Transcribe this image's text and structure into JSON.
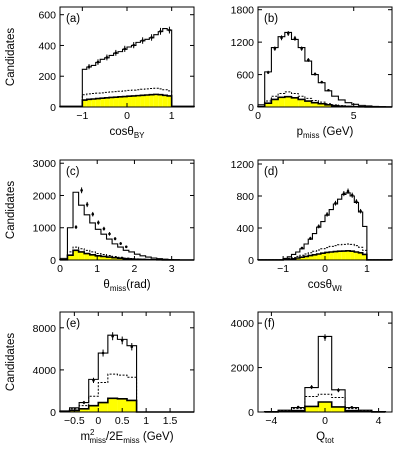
{
  "figure": {
    "y_label": "Candidates",
    "colors": {
      "fill": "#ffff00",
      "line": "#000000",
      "background": "#ffffff"
    }
  },
  "chart_data": [
    {
      "type": "bar",
      "panel": "(a)",
      "xlabel": "cosθ",
      "xlabel_sub": "BY",
      "xlabel_tail": "",
      "ylabel": "Candidates",
      "xlim": [
        -1.5,
        1.5
      ],
      "ylim": [
        0,
        650
      ],
      "xticks": [
        -1,
        0,
        1
      ],
      "yticks": [
        0,
        200,
        400,
        600
      ],
      "bin_edges": [
        -1.5,
        -1.375,
        -1.25,
        -1.125,
        -1.0,
        -0.9,
        -0.8,
        -0.7,
        -0.6,
        -0.5,
        -0.4,
        -0.3,
        -0.2,
        -0.1,
        0.0,
        0.1,
        0.2,
        0.3,
        0.4,
        0.5,
        0.6,
        0.7,
        0.8,
        0.9,
        1.0,
        1.125,
        1.25,
        1.375,
        1.5
      ],
      "series": [
        {
          "style": "solid",
          "values": [
            5,
            5,
            5,
            5,
            245,
            260,
            270,
            290,
            310,
            320,
            335,
            350,
            360,
            375,
            390,
            400,
            420,
            430,
            440,
            450,
            470,
            490,
            510,
            500,
            5,
            5,
            5,
            5
          ]
        },
        {
          "style": "dashed",
          "values": [
            3,
            3,
            3,
            3,
            80,
            85,
            88,
            90,
            92,
            95,
            98,
            100,
            102,
            105,
            108,
            110,
            112,
            115,
            118,
            120,
            122,
            118,
            112,
            105,
            3,
            3,
            3,
            3
          ]
        },
        {
          "style": "filled",
          "values": [
            2,
            2,
            2,
            2,
            45,
            50,
            52,
            55,
            57,
            60,
            62,
            64,
            66,
            68,
            70,
            72,
            74,
            76,
            78,
            80,
            82,
            80,
            76,
            72,
            2,
            2,
            2,
            2
          ]
        }
      ],
      "points": {
        "x": [
          -0.85,
          -0.65,
          -0.45,
          -0.25,
          -0.05,
          0.15,
          0.35,
          0.55,
          0.75,
          0.95
        ],
        "y": [
          262,
          292,
          322,
          352,
          378,
          402,
          432,
          452,
          492,
          500
        ],
        "err": [
          17,
          18,
          19,
          19,
          20,
          20,
          21,
          21,
          22,
          22
        ]
      }
    },
    {
      "type": "bar",
      "panel": "(b)",
      "xlabel": "p",
      "xlabel_sub": "miss",
      "xlabel_tail": " (GeV)",
      "ylabel": "",
      "xlim": [
        0,
        7
      ],
      "ylim": [
        0,
        1850
      ],
      "xticks": [
        0,
        5
      ],
      "yticks": [
        0,
        600,
        1200,
        1800
      ],
      "bin_edges": [
        0,
        0.35,
        0.7,
        1.05,
        1.4,
        1.75,
        2.1,
        2.45,
        2.8,
        3.15,
        3.5,
        3.85,
        4.2,
        4.55,
        4.9,
        5.25,
        5.6,
        5.95,
        6.3,
        6.65,
        7.0
      ],
      "series": [
        {
          "style": "solid",
          "values": [
            40,
            650,
            1100,
            1300,
            1380,
            1250,
            1100,
            850,
            600,
            450,
            300,
            200,
            130,
            80,
            50,
            30,
            20,
            10,
            5,
            3
          ]
        },
        {
          "style": "dashed",
          "values": [
            10,
            110,
            200,
            250,
            280,
            250,
            200,
            160,
            120,
            90,
            60,
            40,
            25,
            15,
            10,
            6,
            4,
            2,
            1,
            1
          ]
        },
        {
          "style": "filled",
          "values": [
            5,
            70,
            140,
            180,
            190,
            170,
            140,
            110,
            80,
            60,
            40,
            25,
            15,
            10,
            6,
            4,
            2,
            1,
            1,
            0
          ]
        }
      ],
      "points": {
        "x": [
          0.53,
          0.88,
          1.23,
          1.58,
          1.93,
          2.28,
          2.63,
          2.98,
          3.33,
          3.68
        ],
        "y": [
          640,
          1080,
          1280,
          1360,
          1270,
          1080,
          870,
          610,
          460,
          310
        ],
        "err": [
          30,
          40,
          45,
          45,
          45,
          40,
          35,
          30,
          25,
          20
        ]
      }
    },
    {
      "type": "bar",
      "panel": "(c)",
      "xlabel": "θ",
      "xlabel_sub": "miss",
      "xlabel_tail": "(rad)",
      "ylabel": "Candidates",
      "xlim": [
        0,
        3.6
      ],
      "ylim": [
        0,
        3100
      ],
      "xticks": [
        0,
        1,
        2,
        3
      ],
      "yticks": [
        0,
        1000,
        2000,
        3000
      ],
      "bin_edges": [
        0,
        0.2,
        0.35,
        0.5,
        0.65,
        0.8,
        0.95,
        1.1,
        1.25,
        1.4,
        1.55,
        1.7,
        1.85,
        2.0,
        2.15,
        2.3,
        2.45,
        2.6,
        2.75,
        2.9,
        3.05,
        3.2,
        3.6
      ],
      "series": [
        {
          "style": "solid",
          "values": [
            50,
            1000,
            2100,
            1700,
            1400,
            1150,
            950,
            800,
            650,
            500,
            400,
            300,
            250,
            180,
            130,
            90,
            60,
            40,
            25,
            15,
            8,
            3
          ]
        },
        {
          "style": "dashed",
          "values": [
            10,
            250,
            400,
            350,
            300,
            250,
            200,
            170,
            140,
            110,
            85,
            60,
            45,
            35,
            25,
            18,
            12,
            8,
            5,
            3,
            2,
            1
          ]
        },
        {
          "style": "filled",
          "values": [
            5,
            150,
            300,
            250,
            200,
            160,
            130,
            110,
            90,
            70,
            55,
            40,
            30,
            22,
            16,
            12,
            8,
            5,
            3,
            2,
            1,
            0
          ]
        }
      ],
      "points": {
        "x": [
          0.43,
          0.58,
          0.73,
          0.88,
          1.03,
          1.18,
          1.33,
          1.48,
          1.63,
          1.78
        ],
        "y": [
          1020,
          2160,
          1720,
          1420,
          1160,
          970,
          810,
          660,
          510,
          410
        ],
        "err": [
          60,
          90,
          80,
          70,
          65,
          60,
          55,
          50,
          45,
          40
        ]
      }
    },
    {
      "type": "bar",
      "panel": "(d)",
      "xlabel": "cosθ",
      "xlabel_sub": "Wℓ",
      "xlabel_tail": "",
      "ylabel": "",
      "xlim": [
        -1.6,
        1.6
      ],
      "ylim": [
        0,
        1250
      ],
      "xticks": [
        -1,
        0,
        1
      ],
      "yticks": [
        0,
        400,
        800,
        1200
      ],
      "bin_edges": [
        -1.6,
        -1.4,
        -1.2,
        -1.0,
        -0.9,
        -0.8,
        -0.7,
        -0.6,
        -0.5,
        -0.4,
        -0.3,
        -0.2,
        -0.1,
        0.0,
        0.1,
        0.2,
        0.3,
        0.4,
        0.5,
        0.6,
        0.7,
        0.8,
        0.9,
        1.0,
        1.2,
        1.4,
        1.6
      ],
      "series": [
        {
          "style": "solid",
          "values": [
            3,
            3,
            3,
            20,
            40,
            70,
            100,
            140,
            200,
            260,
            330,
            410,
            480,
            560,
            630,
            700,
            760,
            820,
            840,
            800,
            720,
            600,
            420,
            3,
            3,
            3
          ]
        },
        {
          "style": "dashed",
          "values": [
            2,
            2,
            2,
            10,
            20,
            30,
            45,
            60,
            75,
            90,
            110,
            125,
            140,
            155,
            170,
            180,
            190,
            195,
            200,
            195,
            180,
            160,
            120,
            2,
            2,
            2
          ]
        },
        {
          "style": "filled",
          "values": [
            1,
            1,
            1,
            5,
            10,
            15,
            25,
            35,
            45,
            55,
            65,
            75,
            85,
            95,
            100,
            105,
            110,
            112,
            115,
            110,
            100,
            90,
            70,
            1,
            1,
            1
          ]
        }
      ],
      "points": {
        "x": [
          -0.55,
          -0.35,
          -0.15,
          0.05,
          0.25,
          0.45,
          0.55,
          0.65,
          0.75,
          0.85
        ],
        "y": [
          150,
          270,
          420,
          570,
          710,
          830,
          860,
          810,
          730,
          610
        ],
        "err": [
          15,
          20,
          25,
          28,
          30,
          32,
          33,
          32,
          30,
          28
        ]
      }
    },
    {
      "type": "bar",
      "panel": "(e)",
      "xlabel": "m",
      "xlabel_sub": "miss",
      "xlabel_sup": "2",
      "xlabel_tail": "/2E",
      "xlabel_sub2": "miss",
      "xlabel_tail2": " (GeV)",
      "ylabel": "Candidates",
      "xlim": [
        -0.8,
        2.0
      ],
      "ylim": [
        0,
        9500
      ],
      "xticks": [
        -0.5,
        0,
        0.5,
        1,
        1.5
      ],
      "yticks": [
        0,
        4000,
        8000
      ],
      "bin_edges": [
        -0.8,
        -0.6,
        -0.4,
        -0.2,
        0.0,
        0.2,
        0.4,
        0.6,
        0.8,
        1.0,
        2.0
      ],
      "series": [
        {
          "style": "solid",
          "values": [
            100,
            400,
            900,
            3100,
            5600,
            7300,
            6900,
            6300,
            0,
            0
          ]
        },
        {
          "style": "dashed",
          "values": [
            80,
            300,
            600,
            1500,
            2800,
            3600,
            3500,
            3300,
            0,
            0
          ]
        },
        {
          "style": "filled",
          "values": [
            50,
            150,
            300,
            600,
            900,
            1300,
            1250,
            1100,
            0,
            0
          ]
        }
      ],
      "points": {
        "x": [
          -0.3,
          -0.1,
          0.1,
          0.3,
          0.5,
          0.7
        ],
        "y": [
          900,
          3000,
          5600,
          7200,
          6800,
          6200
        ],
        "err": [
          150,
          250,
          330,
          380,
          370,
          350
        ]
      }
    },
    {
      "type": "bar",
      "panel": "(f)",
      "xlabel": "Q",
      "xlabel_sub": "tot",
      "xlabel_tail": "",
      "ylabel": "",
      "xlim": [
        -5,
        5
      ],
      "ylim": [
        0,
        4500
      ],
      "xticks": [
        -4,
        0,
        4
      ],
      "yticks": [
        0,
        2000,
        4000
      ],
      "bin_edges": [
        -4.5,
        -3.5,
        -2.5,
        -1.5,
        -0.5,
        0.5,
        1.5,
        2.5,
        3.5,
        4.5
      ],
      "series": [
        {
          "style": "solid",
          "values": [
            20,
            80,
            200,
            1100,
            3400,
            1000,
            200,
            80,
            20
          ]
        },
        {
          "style": "dashed",
          "values": [
            10,
            50,
            150,
            700,
            800,
            650,
            150,
            50,
            10
          ]
        },
        {
          "style": "filled",
          "values": [
            5,
            20,
            60,
            250,
            450,
            230,
            60,
            20,
            5
          ]
        }
      ],
      "points": {
        "x": [
          -2,
          -1,
          0,
          1,
          2
        ],
        "y": [
          220,
          1120,
          3350,
          980,
          210
        ],
        "err": [
          40,
          90,
          150,
          90,
          40
        ]
      }
    }
  ]
}
